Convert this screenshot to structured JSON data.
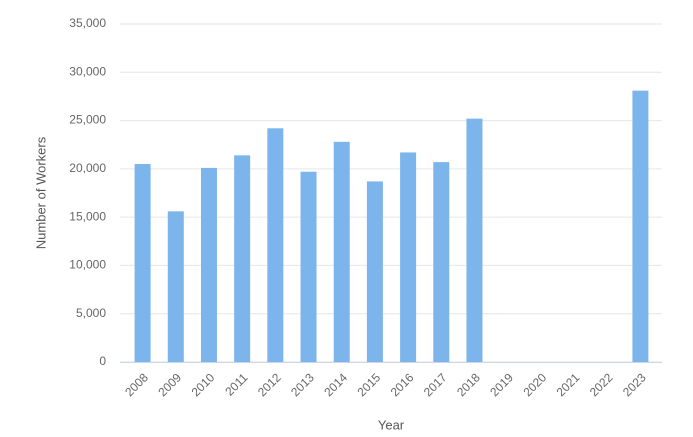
{
  "chart_data": {
    "type": "bar",
    "x_label": "Year",
    "y_label": "Number of Workers",
    "categories": [
      "2008",
      "2009",
      "2010",
      "2011",
      "2012",
      "2013",
      "2014",
      "2015",
      "2016",
      "2017",
      "2018",
      "2019",
      "2020",
      "2021",
      "2022",
      "2023"
    ],
    "values": [
      20500,
      15600,
      20100,
      21400,
      24200,
      19700,
      22800,
      18700,
      21700,
      20700,
      25200,
      null,
      null,
      null,
      null,
      28100
    ],
    "color": "#7cb5ec",
    "ylim": [
      0,
      35000
    ],
    "yticks": [
      0,
      {
        "value": 5000,
        "label": "5,000"
      },
      {
        "value": 10000,
        "label": "10,000"
      },
      {
        "value": 15000,
        "label": "15,000"
      },
      {
        "value": 20000,
        "label": "20,000"
      },
      {
        "value": 25000,
        "label": "25,000"
      },
      {
        "value": 30000,
        "label": "30,000"
      },
      {
        "value": 35000,
        "label": "35,000"
      }
    ],
    "grid": true
  }
}
